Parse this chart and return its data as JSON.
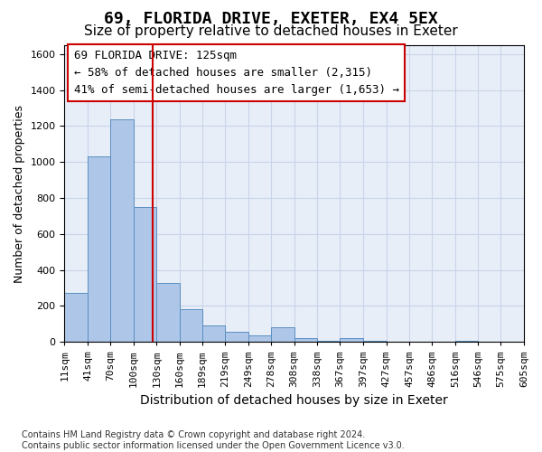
{
  "title1": "69, FLORIDA DRIVE, EXETER, EX4 5EX",
  "title2": "Size of property relative to detached houses in Exeter",
  "xlabel": "Distribution of detached houses by size in Exeter",
  "ylabel": "Number of detached properties",
  "bin_edges": [
    11,
    41,
    70,
    100,
    130,
    160,
    189,
    219,
    249,
    278,
    308,
    338,
    367,
    397,
    427,
    457,
    486,
    516,
    546,
    575,
    605
  ],
  "bin_labels": [
    "11sqm",
    "41sqm",
    "70sqm",
    "100sqm",
    "130sqm",
    "160sqm",
    "189sqm",
    "219sqm",
    "249sqm",
    "278sqm",
    "308sqm",
    "338sqm",
    "367sqm",
    "397sqm",
    "427sqm",
    "457sqm",
    "486sqm",
    "516sqm",
    "546sqm",
    "575sqm",
    "605sqm"
  ],
  "bar_heights": [
    270,
    1030,
    1240,
    750,
    330,
    180,
    90,
    55,
    35,
    80,
    20,
    5,
    20,
    5,
    0,
    0,
    0,
    5,
    0,
    0
  ],
  "bar_color": "#aec6e8",
  "bar_edge_color": "#5a8fc2",
  "property_line_x": 125,
  "property_line_color": "#cc0000",
  "ylim": [
    0,
    1650
  ],
  "yticks": [
    0,
    200,
    400,
    600,
    800,
    1000,
    1200,
    1400,
    1600
  ],
  "annotation_box_text": "69 FLORIDA DRIVE: 125sqm\n← 58% of detached houses are smaller (2,315)\n41% of semi-detached houses are larger (1,653) →",
  "footer_text": "Contains HM Land Registry data © Crown copyright and database right 2024.\nContains public sector information licensed under the Open Government Licence v3.0.",
  "bg_color": "#e8eef8",
  "grid_color": "#c8d4e8",
  "title1_fontsize": 13,
  "title2_fontsize": 11,
  "xlabel_fontsize": 10,
  "ylabel_fontsize": 9,
  "tick_fontsize": 8,
  "annotation_fontsize": 9,
  "footer_fontsize": 7
}
